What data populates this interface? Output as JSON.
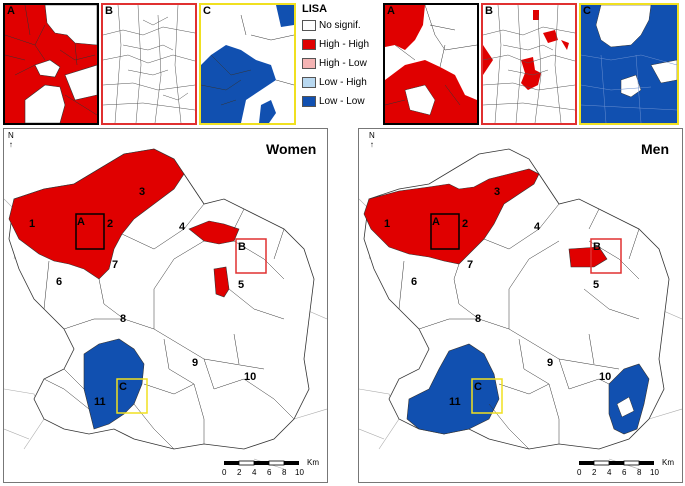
{
  "legend": {
    "title": "LISA",
    "items": [
      {
        "label": "No signif.",
        "color": "#ffffff"
      },
      {
        "label": "High - High",
        "color": "#e00000"
      },
      {
        "label": "High - Low",
        "color": "#f4b4b4"
      },
      {
        "label": "Low - High",
        "color": "#b8d8f0"
      },
      {
        "label": "Low - Low",
        "color": "#1150b0"
      }
    ]
  },
  "insets_left": [
    {
      "label": "A",
      "border": "#000000"
    },
    {
      "label": "B",
      "border": "#e03030"
    },
    {
      "label": "C",
      "border": "#f0e020"
    }
  ],
  "insets_right": [
    {
      "label": "A",
      "border": "#000000"
    },
    {
      "label": "B",
      "border": "#e03030"
    },
    {
      "label": "C",
      "border": "#f0e020"
    }
  ],
  "panels": [
    {
      "title": "Women",
      "north": "N",
      "regions": [
        "1",
        "2",
        "3",
        "4",
        "5",
        "6",
        "7",
        "8",
        "9",
        "10",
        "11"
      ],
      "box_labels": [
        "A",
        "B",
        "C"
      ]
    },
    {
      "title": "Men",
      "north": "N",
      "regions": [
        "1",
        "2",
        "3",
        "4",
        "5",
        "6",
        "7",
        "8",
        "9",
        "10",
        "11"
      ],
      "box_labels": [
        "A",
        "B",
        "C"
      ]
    }
  ],
  "scale": {
    "ticks": [
      "0",
      "2",
      "4",
      "6",
      "8",
      "10"
    ],
    "unit": "Km"
  },
  "colors": {
    "high_high": "#e00000",
    "low_low": "#1150b0",
    "boundary": "#333333",
    "outer_boundary": "#999999"
  }
}
